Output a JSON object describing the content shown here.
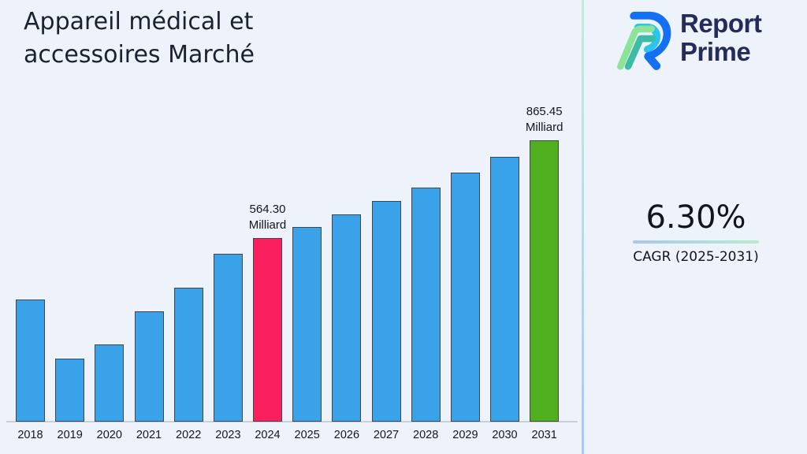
{
  "header": {
    "title": "Appareil médical et\naccessoires Marché"
  },
  "logo": {
    "text": "Report\nPrime",
    "navy": "#232c5a",
    "blue": "#1470f2",
    "cyan": "#29c5ef",
    "teal": "#3cbba6",
    "green": "#8be49a"
  },
  "cagr": {
    "value": "6.30%",
    "label": "CAGR (2025-2031)"
  },
  "chart_data": {
    "type": "bar",
    "title": "Appareil médical et accessoires Marché",
    "unit": "Milliard",
    "categories": [
      "2018",
      "2019",
      "2020",
      "2021",
      "2022",
      "2023",
      "2024",
      "2025",
      "2026",
      "2027",
      "2028",
      "2029",
      "2030",
      "2031"
    ],
    "values": [
      376,
      194,
      238,
      339,
      412,
      516,
      564.3,
      599.85,
      637.64,
      677.81,
      720.51,
      765.91,
      814.16,
      865.45
    ],
    "annotations": [
      {
        "category": "2024",
        "text": "564.30\nMilliard"
      },
      {
        "category": "2031",
        "text": "865.45\nMilliard"
      }
    ],
    "colors": {
      "default": "#3aa2e8",
      "2024": "#fa2060",
      "2031": "#4faf1f"
    },
    "xlabel": "",
    "ylabel": "",
    "ylim": [
      0,
      900
    ],
    "grid": false,
    "legend": false,
    "cagr_percent": 6.3,
    "cagr_period": "2025-2031"
  }
}
